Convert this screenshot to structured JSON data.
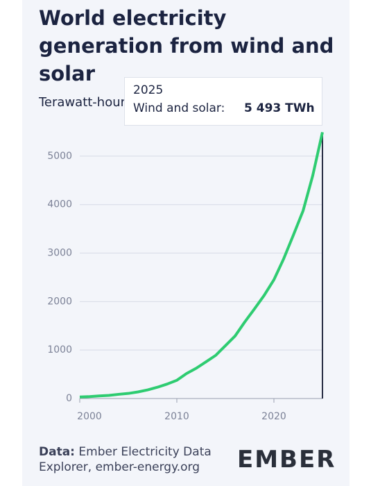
{
  "chart_data": {
    "type": "line",
    "title": "World electricity generation from wind and solar",
    "subtitle": "Terawatt-hours",
    "x": [
      2000,
      2001,
      2002,
      2003,
      2004,
      2005,
      2006,
      2007,
      2008,
      2009,
      2010,
      2011,
      2012,
      2013,
      2014,
      2015,
      2016,
      2017,
      2018,
      2019,
      2020,
      2021,
      2022,
      2023,
      2024,
      2025
    ],
    "values": [
      32,
      39,
      54,
      65,
      87,
      105,
      136,
      178,
      233,
      298,
      376,
      516,
      625,
      757,
      890,
      1090,
      1290,
      1580,
      1850,
      2130,
      2450,
      2880,
      3370,
      3870,
      4600,
      5493
    ],
    "color": "#2ecc71",
    "xlim": [
      2000,
      2025
    ],
    "xticks": [
      2000,
      2010,
      2020
    ],
    "ylim": [
      0,
      5500
    ],
    "yticks": [
      0,
      1000,
      2000,
      3000,
      4000,
      5000
    ],
    "grid": true,
    "tooltip": {
      "title": "2025",
      "label": "Wind and solar:",
      "value": "5 493 TWh"
    },
    "source_label": "Data:",
    "source": "Ember Electricity Data Explorer, ember-energy.org",
    "logo": "EMBER"
  }
}
